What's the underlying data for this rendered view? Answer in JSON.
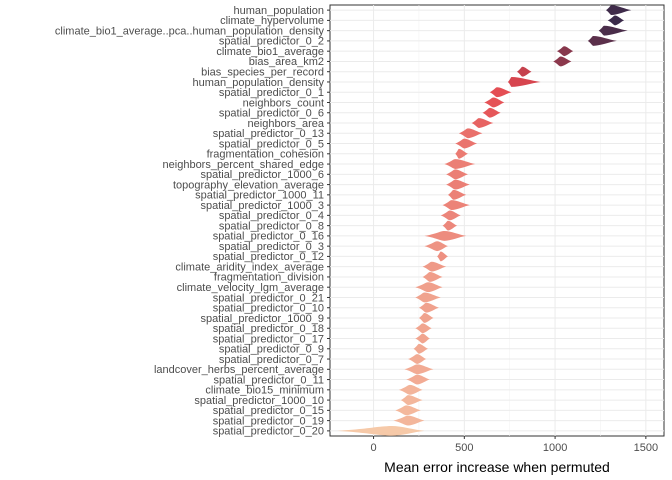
{
  "chart_data": {
    "type": "violin",
    "xlabel": "Mean error increase when permuted",
    "ylabel": "",
    "xlim": [
      -240,
      1600
    ],
    "x_ticks": [
      0,
      500,
      1000,
      1500
    ],
    "grid": true,
    "legend": "none",
    "palette": {
      "low": "#f6c9a8",
      "mid": "#e3474f",
      "high": "#3a2a4a"
    },
    "categories": [
      "human_population",
      "climate_hypervolume",
      "climate_bio1_average..pca..human_population_density",
      "spatial_predictor_0_2",
      "climate_bio1_average",
      "bias_area_km2",
      "bias_species_per_record",
      "human_population_density",
      "spatial_predictor_0_1",
      "neighbors_count",
      "spatial_predictor_0_6",
      "neighbors_area",
      "spatial_predictor_0_13",
      "spatial_predictor_0_5",
      "fragmentation_cohesion",
      "neighbors_percent_shared_edge",
      "spatial_predictor_1000_6",
      "topography_elevation_average",
      "spatial_predictor_1000_11",
      "spatial_predictor_1000_3",
      "spatial_predictor_0_4",
      "spatial_predictor_0_8",
      "spatial_predictor_0_16",
      "spatial_predictor_0_3",
      "spatial_predictor_0_12",
      "climate_aridity_index_average",
      "fragmentation_division",
      "climate_velocity_lgm_average",
      "spatial_predictor_0_21",
      "spatial_predictor_0_10",
      "spatial_predictor_1000_9",
      "spatial_predictor_0_18",
      "spatial_predictor_0_17",
      "spatial_predictor_0_9",
      "spatial_predictor_0_7",
      "landcover_herbs_percent_average",
      "spatial_predictor_0_11",
      "climate_bio15_minimum",
      "spatial_predictor_1000_10",
      "spatial_predictor_0_15",
      "spatial_predictor_0_19",
      "spatial_predictor_0_20"
    ],
    "values": [
      {
        "min": 1280,
        "mode": 1310,
        "max": 1420
      },
      {
        "min": 1290,
        "mode": 1330,
        "max": 1380
      },
      {
        "min": 1240,
        "mode": 1270,
        "max": 1400
      },
      {
        "min": 1180,
        "mode": 1210,
        "max": 1340
      },
      {
        "min": 1010,
        "mode": 1050,
        "max": 1100
      },
      {
        "min": 990,
        "mode": 1030,
        "max": 1090
      },
      {
        "min": 790,
        "mode": 820,
        "max": 870
      },
      {
        "min": 740,
        "mode": 760,
        "max": 920
      },
      {
        "min": 640,
        "mode": 680,
        "max": 760
      },
      {
        "min": 610,
        "mode": 660,
        "max": 720
      },
      {
        "min": 600,
        "mode": 640,
        "max": 700
      },
      {
        "min": 540,
        "mode": 580,
        "max": 660
      },
      {
        "min": 470,
        "mode": 520,
        "max": 600
      },
      {
        "min": 450,
        "mode": 500,
        "max": 570
      },
      {
        "min": 450,
        "mode": 470,
        "max": 520
      },
      {
        "min": 390,
        "mode": 450,
        "max": 560
      },
      {
        "min": 400,
        "mode": 450,
        "max": 520
      },
      {
        "min": 400,
        "mode": 450,
        "max": 530
      },
      {
        "min": 410,
        "mode": 440,
        "max": 510
      },
      {
        "min": 380,
        "mode": 430,
        "max": 530
      },
      {
        "min": 370,
        "mode": 420,
        "max": 480
      },
      {
        "min": 380,
        "mode": 410,
        "max": 460
      },
      {
        "min": 280,
        "mode": 390,
        "max": 510
      },
      {
        "min": 280,
        "mode": 350,
        "max": 410
      },
      {
        "min": 350,
        "mode": 370,
        "max": 410
      },
      {
        "min": 270,
        "mode": 320,
        "max": 400
      },
      {
        "min": 270,
        "mode": 310,
        "max": 380
      },
      {
        "min": 230,
        "mode": 300,
        "max": 380
      },
      {
        "min": 230,
        "mode": 280,
        "max": 370
      },
      {
        "min": 250,
        "mode": 290,
        "max": 360
      },
      {
        "min": 250,
        "mode": 280,
        "max": 330
      },
      {
        "min": 230,
        "mode": 270,
        "max": 320
      },
      {
        "min": 230,
        "mode": 270,
        "max": 310
      },
      {
        "min": 220,
        "mode": 250,
        "max": 300
      },
      {
        "min": 190,
        "mode": 240,
        "max": 290
      },
      {
        "min": 170,
        "mode": 240,
        "max": 330
      },
      {
        "min": 180,
        "mode": 240,
        "max": 310
      },
      {
        "min": 140,
        "mode": 200,
        "max": 270
      },
      {
        "min": 150,
        "mode": 190,
        "max": 270
      },
      {
        "min": 120,
        "mode": 180,
        "max": 260
      },
      {
        "min": 110,
        "mode": 190,
        "max": 280
      },
      {
        "min": -200,
        "mode": 100,
        "max": 280
      }
    ]
  }
}
